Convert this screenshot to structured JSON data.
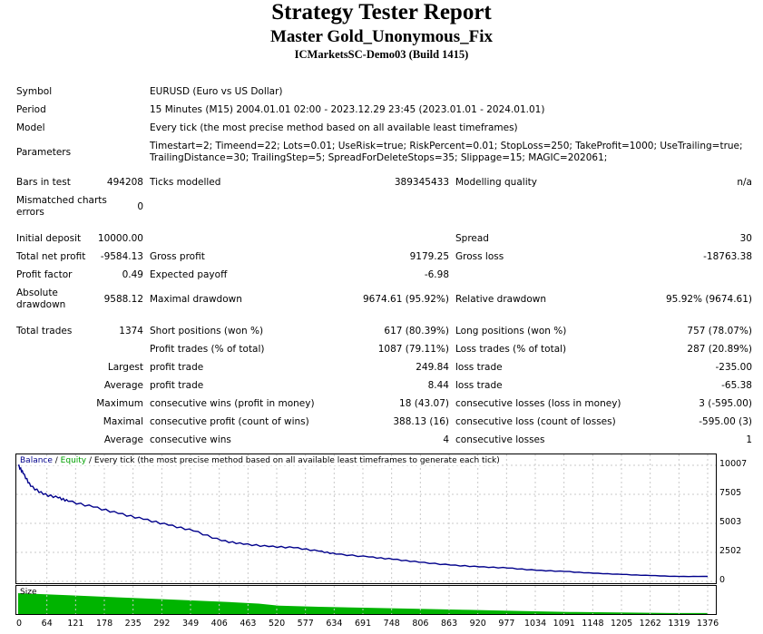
{
  "header": {
    "title": "Strategy Tester Report",
    "expert": "Master Gold_Unonymous_Fix",
    "server": "ICMarketsSC-Demo03 (Build 1415)"
  },
  "info": {
    "symbol_label": "Symbol",
    "symbol": "EURUSD (Euro vs US Dollar)",
    "period_label": "Period",
    "period": "15 Minutes (M15) 2004.01.01 02:00 - 2023.12.29 23:45 (2023.01.01 - 2024.01.01)",
    "model_label": "Model",
    "model": "Every tick (the most precise method based on all available least timeframes)",
    "parameters_label": "Parameters",
    "parameters_line1": "Timestart=2; Timeend=22; Lots=0.01; UseRisk=true; RiskPercent=0.01; StopLoss=250; TakeProfit=1000; UseTrailing=true;",
    "parameters_line2": "TrailingDistance=30; TrailingStep=5; SpreadForDeleteStops=35; Slippage=15; MAGIC=202061;"
  },
  "bars": {
    "bars_label": "Bars in test",
    "bars": "494208",
    "ticks_label": "Ticks modelled",
    "ticks": "389345433",
    "quality_label": "Modelling quality",
    "quality": "n/a",
    "mismatch_label_1": "Mismatched charts",
    "mismatch_label_2": "errors",
    "mismatch": "0"
  },
  "results": {
    "initial_deposit_label": "Initial deposit",
    "initial_deposit": "10000.00",
    "spread_label": "Spread",
    "spread": "30",
    "net_profit_label": "Total net profit",
    "net_profit": "-9584.13",
    "gross_profit_label": "Gross profit",
    "gross_profit": "9179.25",
    "gross_loss_label": "Gross loss",
    "gross_loss": "-18763.38",
    "profit_factor_label": "Profit factor",
    "profit_factor": "0.49",
    "expected_payoff_label": "Expected payoff",
    "expected_payoff": "-6.98",
    "abs_dd_label_1": "Absolute",
    "abs_dd_label_2": "drawdown",
    "abs_dd": "9588.12",
    "max_dd_label": "Maximal drawdown",
    "max_dd": "9674.61 (95.92%)",
    "rel_dd_label": "Relative drawdown",
    "rel_dd": "95.92% (9674.61)"
  },
  "trades": {
    "total_label": "Total trades",
    "total": "1374",
    "short_label": "Short positions (won %)",
    "short": "617 (80.39%)",
    "long_label": "Long positions (won %)",
    "long": "757 (78.07%)",
    "profit_trades_label": "Profit trades (% of total)",
    "profit_trades": "1087 (79.11%)",
    "loss_trades_label": "Loss trades (% of total)",
    "loss_trades": "287 (20.89%)",
    "largest_label": "Largest",
    "profit_trade_label": "profit trade",
    "largest_profit": "249.84",
    "loss_trade_label": "loss trade",
    "largest_loss": "-235.00",
    "average_label": "Average",
    "average_profit": "8.44",
    "average_loss": "-65.38",
    "maximum_label": "Maximum",
    "max_cons_wins_label": "consecutive wins (profit in money)",
    "max_cons_wins": "18 (43.07)",
    "max_cons_losses_label": "consecutive losses (loss in money)",
    "max_cons_losses": "3 (-595.00)",
    "maximal_label": "Maximal",
    "maximal_cons_profit_label": "consecutive profit (count of wins)",
    "maximal_cons_profit": "388.13 (16)",
    "maximal_cons_loss_label": "consecutive loss (count of losses)",
    "maximal_cons_loss": "-595.00 (3)",
    "avg_cons_wins_label": "consecutive wins",
    "avg_cons_wins": "4",
    "avg_cons_losses_label": "consecutive losses",
    "avg_cons_losses": "1"
  },
  "chart": {
    "legend_balance": "Balance",
    "legend_sep1": " / ",
    "legend_equity": "Equity",
    "legend_rest": " / Every tick (the most precise method based on all available least timeframes to generate each tick)",
    "size_label": "Size",
    "balance_color": "#00008b",
    "size_color": "#00b400",
    "y_ticks": [
      "10007",
      "7505",
      "5003",
      "2502",
      "0"
    ],
    "x_ticks": [
      "0",
      "64",
      "121",
      "178",
      "235",
      "292",
      "349",
      "406",
      "463",
      "520",
      "577",
      "634",
      "691",
      "748",
      "806",
      "863",
      "920",
      "977",
      "1034",
      "1091",
      "1148",
      "1205",
      "1262",
      "1319",
      "1376"
    ]
  },
  "chart_data": {
    "type": "line",
    "xlabel": "",
    "ylabel": "",
    "ylim": [
      0,
      10007
    ],
    "xlim": [
      0,
      1376
    ],
    "grid": true,
    "series": [
      {
        "name": "Balance",
        "x": [
          0,
          10,
          25,
          50,
          80,
          100,
          150,
          200,
          250,
          300,
          350,
          406,
          450,
          500,
          550,
          600,
          634,
          700,
          748,
          800,
          863,
          920,
          977,
          1034,
          1091,
          1148,
          1205,
          1262,
          1319,
          1376
        ],
        "values": [
          10007,
          9300,
          8200,
          7500,
          7200,
          6900,
          6400,
          5850,
          5350,
          4850,
          4350,
          3500,
          3200,
          3000,
          2900,
          2600,
          2350,
          2100,
          1900,
          1650,
          1400,
          1250,
          1150,
          950,
          850,
          700,
          600,
          500,
          420,
          430
        ]
      }
    ],
    "size_series": {
      "name": "Size",
      "x": [
        0,
        100,
        200,
        300,
        400,
        480,
        520,
        600,
        700,
        800,
        900,
        1000,
        1100,
        1200,
        1300,
        1376
      ],
      "values": [
        1.0,
        0.9,
        0.8,
        0.7,
        0.6,
        0.5,
        0.4,
        0.35,
        0.3,
        0.25,
        0.2,
        0.15,
        0.1,
        0.08,
        0.05,
        0.05
      ]
    }
  }
}
